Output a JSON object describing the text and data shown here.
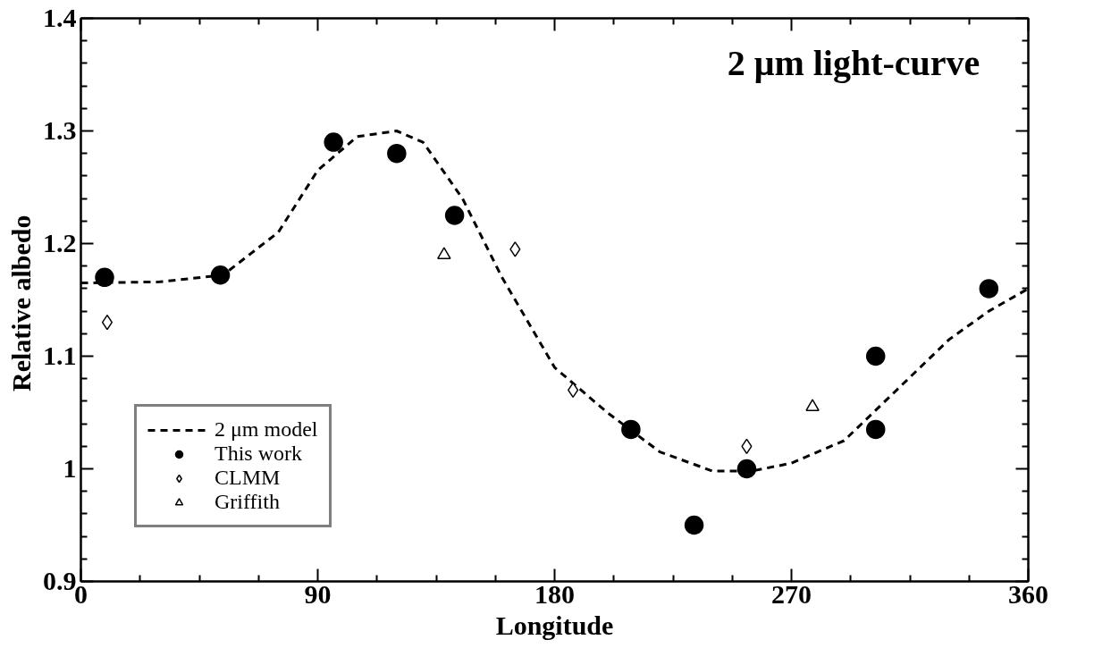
{
  "chart_data": {
    "type": "scatter",
    "xlabel": "Longitude",
    "ylabel": "Relative  albedo",
    "annotations": [
      "2 μm  light-curve"
    ],
    "xlim": [
      0,
      360
    ],
    "xticks": [
      0,
      90,
      180,
      270,
      360
    ],
    "ylim": [
      0.9,
      1.4
    ],
    "yticks": [
      {
        "value": 0.9,
        "label": "0.9"
      },
      {
        "value": 1.0,
        "label": "1"
      },
      {
        "value": 1.1,
        "label": "1.1"
      },
      {
        "value": 1.2,
        "label": "1.2"
      },
      {
        "value": 1.3,
        "label": "1.3"
      },
      {
        "value": 1.4,
        "label": "1.4"
      }
    ],
    "grid": false,
    "legend": "bottom left",
    "series": [
      {
        "name": "2 μm model",
        "type": "line",
        "line_style": "dashed",
        "marker": "none",
        "color": "#000000",
        "x": [
          0,
          30,
          54,
          75,
          90,
          105,
          120,
          130,
          145,
          160,
          180,
          200,
          220,
          240,
          255,
          270,
          290,
          310,
          330,
          345,
          360
        ],
        "values": [
          1.165,
          1.166,
          1.172,
          1.21,
          1.265,
          1.295,
          1.3,
          1.29,
          1.24,
          1.17,
          1.09,
          1.05,
          1.015,
          0.998,
          0.998,
          1.005,
          1.025,
          1.07,
          1.115,
          1.14,
          1.16
        ]
      },
      {
        "name": "This work",
        "marker": "circle",
        "color": "#000000",
        "x": [
          9,
          53,
          96,
          120,
          142,
          209,
          233,
          253,
          302,
          302,
          345
        ],
        "values": [
          1.17,
          1.172,
          1.29,
          1.28,
          1.225,
          1.035,
          0.95,
          1.0,
          1.035,
          1.1,
          1.16
        ]
      },
      {
        "name": "CLMM",
        "marker": "diamond",
        "color": "#ffffff",
        "x": [
          10,
          165,
          187,
          253
        ],
        "values": [
          1.13,
          1.195,
          1.07,
          1.02
        ]
      },
      {
        "name": "Griffith",
        "marker": "triangle",
        "color": "#ffffff",
        "x": [
          138,
          278
        ],
        "values": [
          1.19,
          1.055
        ]
      }
    ]
  }
}
